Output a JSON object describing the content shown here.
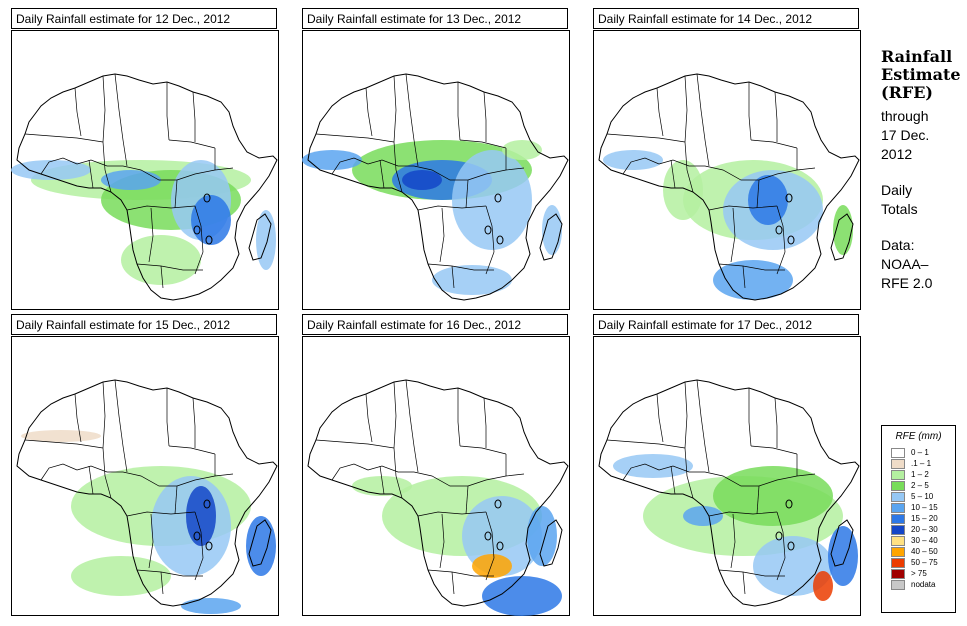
{
  "panels": [
    {
      "title": "Daily Rainfall estimate for  12 Dec., 2012"
    },
    {
      "title": "Daily Rainfall estimate for  13 Dec., 2012"
    },
    {
      "title": "Daily Rainfall estimate for  14 Dec., 2012"
    },
    {
      "title": "Daily Rainfall estimate for  15 Dec., 2012"
    },
    {
      "title": "Daily Rainfall estimate for  16 Dec., 2012"
    },
    {
      "title": "Daily Rainfall estimate for  17 Dec., 2012"
    }
  ],
  "side": {
    "title_line1": "Rainfall",
    "title_line2": "Estimate",
    "title_line3": "(RFE)",
    "through": "through",
    "date_line1": "17 Dec.",
    "date_line2": "2012",
    "totals_line1": "Daily",
    "totals_line2": "Totals",
    "data_line1": "Data:",
    "data_line2": "NOAA–",
    "data_line3": "RFE 2.0"
  },
  "legend": {
    "title": "RFE (mm)",
    "items": [
      {
        "label": "0 – 1",
        "color": "#ffffff"
      },
      {
        "label": ".1 – 1",
        "color": "#efdcc8"
      },
      {
        "label": "1 – 2",
        "color": "#b4f0a0"
      },
      {
        "label": "2 – 5",
        "color": "#78dc5a"
      },
      {
        "label": "5 – 10",
        "color": "#96c8f5"
      },
      {
        "label": "10 – 15",
        "color": "#5aa5f0"
      },
      {
        "label": "15 – 20",
        "color": "#2d78e6"
      },
      {
        "label": "20 – 30",
        "color": "#1446c8"
      },
      {
        "label": "30 – 40",
        "color": "#ffe182"
      },
      {
        "label": "40 – 50",
        "color": "#ffa500"
      },
      {
        "label": "50 – 75",
        "color": "#eb3c00"
      },
      {
        "label": "> 75",
        "color": "#a00000"
      },
      {
        "label": "nodata",
        "color": "#c8c8c8"
      }
    ]
  }
}
